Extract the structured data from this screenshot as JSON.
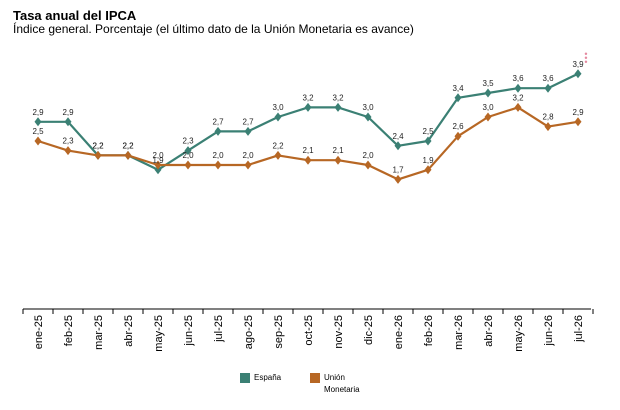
{
  "header": {
    "title": "Tasa anual del IPCA",
    "subtitle": "Índice general. Porcentaje (el último dato de la Unión Monetaria es avance)"
  },
  "menu": {
    "icon": "more-vertical-icon",
    "color": "#e58aa0"
  },
  "legend": [
    {
      "label": "España",
      "color": "#3b8074"
    },
    {
      "label_lines": [
        "Unión",
        "Monetaria"
      ],
      "color": "#b76724"
    }
  ],
  "chart_data": {
    "type": "line",
    "categories": [
      "ene-25",
      "feb-25",
      "mar-25",
      "abr-25",
      "may-25",
      "jun-25",
      "jul-25",
      "ago-25",
      "sep-25",
      "oct-25",
      "nov-25",
      "dic-25",
      "ene-26",
      "feb-26",
      "mar-26",
      "abr-26",
      "may-26",
      "jun-26",
      "jul-26"
    ],
    "ylim": [
      -1,
      4.5
    ],
    "grid": false,
    "legend_position": "bottom",
    "series": [
      {
        "name": "España",
        "color": "#3b8074",
        "values": [
          2.9,
          2.9,
          2.2,
          2.2,
          1.9,
          2.3,
          2.7,
          2.7,
          3.0,
          3.2,
          3.2,
          3.0,
          2.4,
          2.5,
          3.4,
          3.5,
          3.6,
          3.6,
          3.9
        ],
        "labels": [
          "2,9",
          "2,9",
          "2,2",
          "2,2",
          "1,9",
          "2,3",
          "2,7",
          "2,7",
          "3,0",
          "3,2",
          "3,2",
          "3,0",
          "2,4",
          "2,5",
          "3,4",
          "3,5",
          "3,6",
          "3,6",
          "3,9"
        ]
      },
      {
        "name": "Unión Monetaria",
        "color": "#b76724",
        "values": [
          2.5,
          2.3,
          2.2,
          2.2,
          2.0,
          2.0,
          2.0,
          2.0,
          2.2,
          2.1,
          2.1,
          2.0,
          1.7,
          1.9,
          2.6,
          3.0,
          3.2,
          2.8,
          2.9
        ],
        "labels": [
          "2,5",
          "2,3",
          "2,2",
          "2,2",
          "2,0",
          "2,0",
          "2,0",
          "2,0",
          "2,2",
          "2,1",
          "2,1",
          "2,0",
          "1,7",
          "1,9",
          "2,6",
          "3,0",
          "3,2",
          "2,8",
          "2,9"
        ]
      }
    ]
  }
}
